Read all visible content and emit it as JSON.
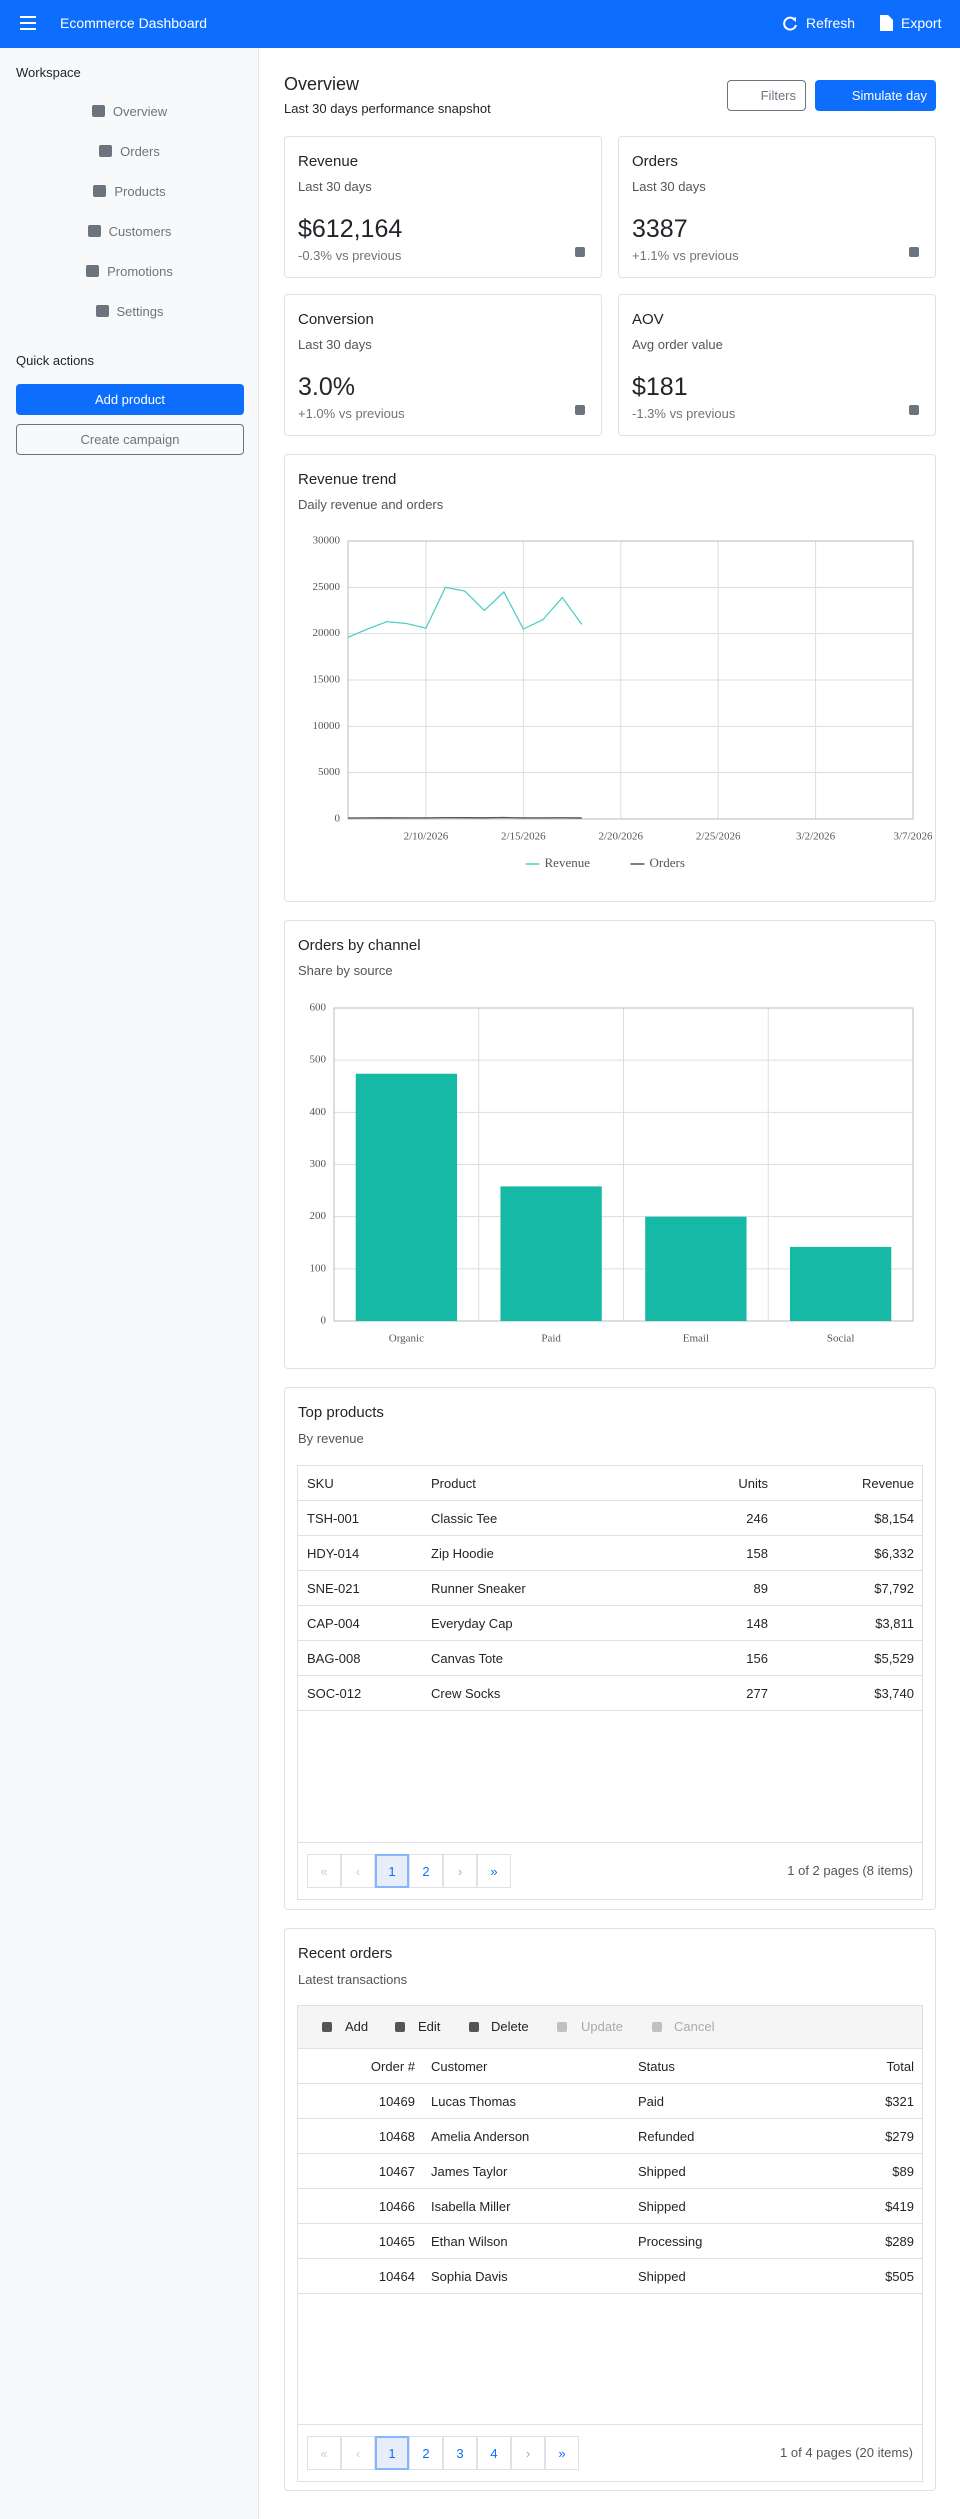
{
  "header": {
    "title": "Ecommerce Dashboard",
    "actions": [
      "Refresh",
      "Export"
    ]
  },
  "sidebar": {
    "heading": "Workspace",
    "nav": [
      "Overview",
      "Orders",
      "Products",
      "Customers",
      "Promotions",
      "Settings"
    ],
    "quick_heading": "Quick actions",
    "quick_actions": [
      "Add product",
      "Create campaign"
    ]
  },
  "overview": {
    "title": "Overview",
    "subtitle": "Last 30 days performance snapshot",
    "buttons": [
      "Filters",
      "Simulate day"
    ]
  },
  "kpis": [
    {
      "title": "Revenue",
      "period": "Last 30 days",
      "value": "$612,164",
      "change": "-0.3% vs previous"
    },
    {
      "title": "Orders",
      "period": "Last 30 days",
      "value": "3387",
      "change": "+1.1% vs previous"
    },
    {
      "title": "Conversion",
      "period": "Last 30 days",
      "value": "3.0%",
      "change": "+1.0% vs previous"
    },
    {
      "title": "AOV",
      "period": "Avg order value",
      "value": "$181",
      "change": "-1.3% vs previous"
    }
  ],
  "chart_data": [
    {
      "type": "line",
      "title": "Revenue trend",
      "subtitle": "Daily revenue and orders",
      "x": [
        "2/6/2026",
        "2/7/2026",
        "2/8/2026",
        "2/9/2026",
        "2/10/2026",
        "2/11/2026",
        "2/12/2026",
        "2/13/2026",
        "2/14/2026",
        "2/15/2026",
        "2/16/2026",
        "2/17/2026",
        "2/18/2026"
      ],
      "series": [
        {
          "name": "Revenue",
          "color": "#4fd1c5",
          "values": [
            19600,
            20500,
            21300,
            21100,
            20600,
            25000,
            24600,
            22500,
            24500,
            20500,
            21500,
            23900,
            21000
          ]
        },
        {
          "name": "Orders",
          "color": "#555555",
          "values": [
            110,
            120,
            130,
            125,
            120,
            150,
            140,
            130,
            160,
            120,
            125,
            135,
            115
          ]
        }
      ],
      "xlim": [
        "2/6/2026",
        "3/7/2026"
      ],
      "xticks": [
        "2/10/2026",
        "2/15/2026",
        "2/20/2026",
        "2/25/2026",
        "3/2/2026",
        "3/7/2026"
      ],
      "ylim": [
        0,
        30000
      ],
      "yticks": [
        0,
        5000,
        10000,
        15000,
        20000,
        25000,
        30000
      ],
      "grid": true,
      "legend": "bottom"
    },
    {
      "type": "bar",
      "title": "Orders by channel",
      "subtitle": "Share by source",
      "categories": [
        "Organic",
        "Paid",
        "Email",
        "Social"
      ],
      "values": [
        474,
        258,
        200,
        142
      ],
      "color": "#16b9a6",
      "ylim": [
        0,
        600
      ],
      "yticks": [
        0,
        100,
        200,
        300,
        400,
        500,
        600
      ],
      "grid": true
    }
  ],
  "top_products": {
    "title": "Top products",
    "subtitle": "By revenue",
    "columns": [
      "SKU",
      "Product",
      "Units",
      "Revenue"
    ],
    "rows": [
      [
        "TSH-001",
        "Classic Tee",
        246,
        "$8,154"
      ],
      [
        "HDY-014",
        "Zip Hoodie",
        158,
        "$6,332"
      ],
      [
        "SNE-021",
        "Runner Sneaker",
        89,
        "$7,792"
      ],
      [
        "CAP-004",
        "Everyday Cap",
        148,
        "$3,811"
      ],
      [
        "BAG-008",
        "Canvas Tote",
        156,
        "$5,529"
      ],
      [
        "SOC-012",
        "Crew Socks",
        277,
        "$3,740"
      ]
    ],
    "pages": [
      1,
      2
    ],
    "page_info": "1 of 2 pages (8 items)"
  },
  "recent_orders": {
    "title": "Recent orders",
    "subtitle": "Latest transactions",
    "toolbar": [
      "Add",
      "Edit",
      "Delete",
      "Update",
      "Cancel"
    ],
    "columns": [
      "Order #",
      "Customer",
      "Status",
      "Total"
    ],
    "rows": [
      [
        10469,
        "Lucas Thomas",
        "Paid",
        "$321"
      ],
      [
        10468,
        "Amelia Anderson",
        "Refunded",
        "$279"
      ],
      [
        10467,
        "James Taylor",
        "Shipped",
        "$89"
      ],
      [
        10466,
        "Isabella Miller",
        "Shipped",
        "$419"
      ],
      [
        10465,
        "Ethan Wilson",
        "Processing",
        "$289"
      ],
      [
        10464,
        "Sophia Davis",
        "Shipped",
        "$505"
      ]
    ],
    "pages": [
      1,
      2,
      3,
      4
    ],
    "page_info": "1 of 4 pages (20 items)"
  }
}
